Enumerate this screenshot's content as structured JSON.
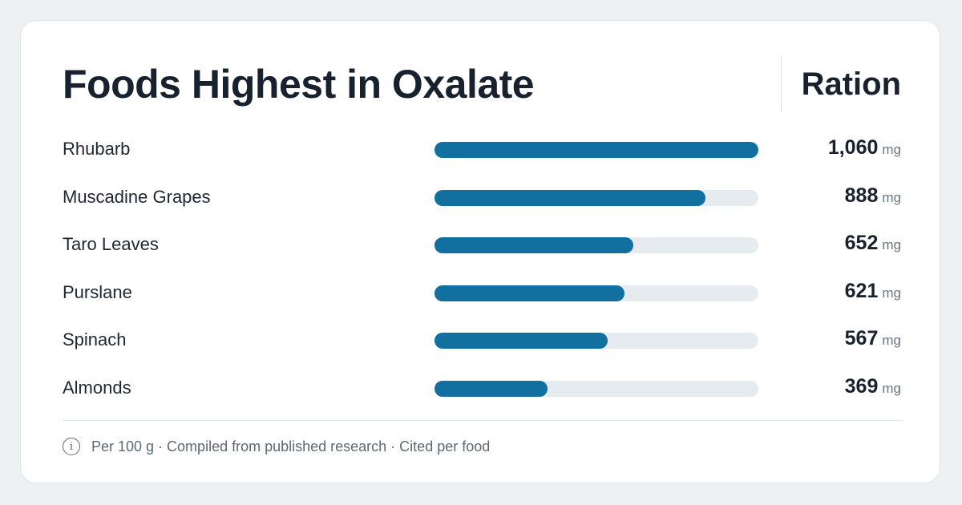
{
  "title": "Foods Highest in Oxalate",
  "column_header": "Ration",
  "unit": "mg",
  "footer": {
    "icon": "info-icon",
    "text": "Per 100 g · Compiled from published research · Cited per food"
  },
  "colors": {
    "bar": "#1270a0",
    "track": "#e6ebef"
  },
  "chart_data": {
    "type": "bar",
    "orientation": "horizontal",
    "title": "Foods Highest in Oxalate",
    "categories": [
      "Rhubarb",
      "Muscadine Grapes",
      "Taro Leaves",
      "Purslane",
      "Spinach",
      "Almonds"
    ],
    "values": [
      1060,
      888,
      652,
      621,
      567,
      369
    ],
    "value_labels": [
      "1,060",
      "888",
      "652",
      "621",
      "567",
      "369"
    ],
    "unit": "mg",
    "xlim": [
      0,
      1060
    ],
    "grid": false,
    "legend": "none"
  }
}
